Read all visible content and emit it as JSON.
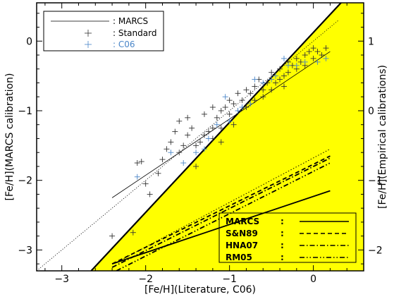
{
  "chart_data": {
    "type": "scatter",
    "xlabel": "[Fe/H](Literature, C06)",
    "ylabel_left": "[Fe/H](MARCS calibration)",
    "ylabel_right": "[Fe/H](Empirical calibrations)",
    "xlim": [
      -3.3,
      0.6
    ],
    "ylim_left": [
      -3.3,
      0.55
    ],
    "ylim_right": [
      -2.3,
      1.55
    ],
    "x_ticks": [
      -3,
      -2,
      -1,
      0
    ],
    "x_tick_labels": [
      "−3",
      "−2",
      "−1",
      "0"
    ],
    "y_left_ticks": [
      -3,
      -2,
      -1,
      0
    ],
    "y_left_tick_labels": [
      "−3",
      "−2",
      "−1",
      "0"
    ],
    "y_right_ticks": [
      -2,
      -1,
      0,
      1
    ],
    "y_right_tick_labels": [
      "−2",
      "−1",
      "0",
      "1"
    ],
    "colors": {
      "standard": "#333333",
      "c06": "#4a86c8",
      "fill": "#ffff00",
      "line": "#000000"
    },
    "legend_top": {
      "position": "top-left",
      "entries": [
        {
          "key": "marcs",
          "label": ": MARCS",
          "style": "line"
        },
        {
          "key": "standard",
          "label": ": Standard",
          "style": "plus"
        },
        {
          "key": "c06",
          "label": ": C06",
          "style": "plus"
        }
      ]
    },
    "legend_bottom": {
      "position": "bottom-right",
      "entries": [
        {
          "name": "MARCS",
          "colon": ":",
          "dash": "solid"
        },
        {
          "name": "S&N89",
          "colon": ":",
          "dash": "dashed"
        },
        {
          "name": "HNA07",
          "colon": ":",
          "dash": "dashdot"
        },
        {
          "name": "RM05",
          "colon": ":",
          "dash": "dashdotdot"
        }
      ]
    },
    "reference_lines": {
      "one_to_one": {
        "from": [
          -3.3,
          -3.3
        ],
        "to": [
          0.3,
          0.3
        ]
      },
      "marcs_fit": {
        "from": [
          -2.4,
          -2.25
        ],
        "to": [
          0.2,
          -0.15
        ]
      },
      "boundary_diagonal": {
        "from": [
          -2.65,
          -3.3
        ],
        "to": [
          0.6,
          0.9
        ]
      }
    },
    "empirical_lines": [
      {
        "name": "MARCS",
        "dash": "solid",
        "from": [
          -2.4,
          -3.2
        ],
        "to": [
          0.2,
          -2.15
        ]
      },
      {
        "name": "S&N89",
        "dash": "dashed",
        "from": [
          -2.4,
          -3.2
        ],
        "to": [
          0.2,
          -1.65
        ]
      },
      {
        "name": "HNA07",
        "dash": "dashdot",
        "from": [
          -2.4,
          -3.25
        ],
        "to": [
          0.2,
          -1.68
        ]
      },
      {
        "name": "RM05",
        "dash": "dashdotdot",
        "from": [
          -2.35,
          -3.3
        ],
        "to": [
          0.2,
          -1.75
        ]
      },
      {
        "name": "",
        "dash": "dotted",
        "from": [
          -2.35,
          -3.18
        ],
        "to": [
          0.2,
          -1.55
        ]
      }
    ],
    "series": [
      {
        "name": "Standard",
        "points": [
          [
            -2.4,
            -2.8
          ],
          [
            -2.15,
            -2.75
          ],
          [
            -2.1,
            -1.75
          ],
          [
            -2.05,
            -1.73
          ],
          [
            -2.0,
            -2.05
          ],
          [
            -1.95,
            -2.2
          ],
          [
            -1.85,
            -1.9
          ],
          [
            -1.8,
            -1.7
          ],
          [
            -1.7,
            -1.45
          ],
          [
            -1.65,
            -1.3
          ],
          [
            -1.6,
            -1.6
          ],
          [
            -1.55,
            -1.5
          ],
          [
            -1.5,
            -1.35
          ],
          [
            -1.5,
            -1.1
          ],
          [
            -1.45,
            -1.25
          ],
          [
            -1.4,
            -1.8
          ],
          [
            -1.35,
            -1.45
          ],
          [
            -1.3,
            -1.35
          ],
          [
            -1.3,
            -1.05
          ],
          [
            -1.25,
            -1.3
          ],
          [
            -1.2,
            -1.25
          ],
          [
            -1.2,
            -0.95
          ],
          [
            -1.15,
            -1.1
          ],
          [
            -1.1,
            -1.0
          ],
          [
            -1.1,
            -1.25
          ],
          [
            -1.05,
            -0.95
          ],
          [
            -1.0,
            -1.05
          ],
          [
            -1.0,
            -0.85
          ],
          [
            -0.95,
            -0.9
          ],
          [
            -0.9,
            -0.75
          ],
          [
            -0.9,
            -1.0
          ],
          [
            -0.85,
            -0.85
          ],
          [
            -0.8,
            -0.7
          ],
          [
            -0.8,
            -0.95
          ],
          [
            -0.75,
            -0.75
          ],
          [
            -0.7,
            -0.65
          ],
          [
            -0.7,
            -0.85
          ],
          [
            -0.65,
            -0.55
          ],
          [
            -0.6,
            -0.7
          ],
          [
            -0.55,
            -0.6
          ],
          [
            -0.5,
            -0.45
          ],
          [
            -0.5,
            -0.7
          ],
          [
            -0.45,
            -0.6
          ],
          [
            -0.4,
            -0.4
          ],
          [
            -0.4,
            -0.55
          ],
          [
            -0.35,
            -0.5
          ],
          [
            -0.3,
            -0.3
          ],
          [
            -0.3,
            -0.45
          ],
          [
            -0.25,
            -0.35
          ],
          [
            -0.2,
            -0.25
          ],
          [
            -0.2,
            -0.4
          ],
          [
            -0.15,
            -0.3
          ],
          [
            -0.1,
            -0.2
          ],
          [
            -0.1,
            -0.35
          ],
          [
            -0.05,
            -0.15
          ],
          [
            0.0,
            -0.25
          ],
          [
            0.0,
            -0.1
          ],
          [
            0.05,
            -0.15
          ],
          [
            0.1,
            -0.2
          ],
          [
            0.15,
            -0.1
          ],
          [
            -1.6,
            -1.15
          ],
          [
            -1.4,
            -1.5
          ],
          [
            -1.2,
            -1.4
          ],
          [
            -0.95,
            -1.2
          ],
          [
            -0.6,
            -0.8
          ],
          [
            -0.35,
            -0.65
          ],
          [
            -1.75,
            -1.55
          ],
          [
            -1.1,
            -1.45
          ]
        ]
      },
      {
        "name": "C06",
        "points": [
          [
            -2.1,
            -1.95
          ],
          [
            -1.7,
            -1.6
          ],
          [
            -1.55,
            -1.75
          ],
          [
            -1.4,
            -1.6
          ],
          [
            -1.3,
            -1.55
          ],
          [
            -1.25,
            -1.4
          ],
          [
            -1.15,
            -1.2
          ],
          [
            -1.0,
            -1.15
          ],
          [
            -0.9,
            -1.0
          ],
          [
            -0.85,
            -0.95
          ],
          [
            -0.75,
            -0.9
          ],
          [
            -0.6,
            -0.6
          ],
          [
            -0.5,
            -0.55
          ],
          [
            -0.45,
            -0.5
          ],
          [
            -0.3,
            -0.35
          ],
          [
            -0.2,
            -0.35
          ],
          [
            -0.1,
            -0.3
          ],
          [
            0.05,
            -0.3
          ],
          [
            0.15,
            -0.25
          ],
          [
            -0.35,
            -0.25
          ],
          [
            -1.05,
            -0.8
          ],
          [
            -0.7,
            -0.55
          ]
        ]
      }
    ]
  }
}
